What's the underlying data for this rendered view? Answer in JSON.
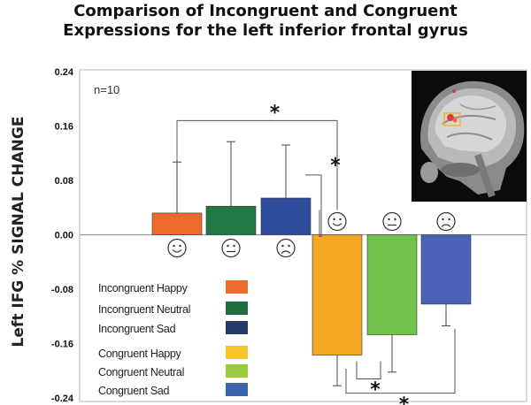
{
  "chart_data": {
    "type": "bar",
    "title_line1": "Comparison of Incongruent and Congruent",
    "title_line2": "Expressions for the left inferior frontal gyrus",
    "ylabel": "Left IFG %  SIGNAL CHANGE",
    "annotation": "n=10",
    "ylim": [
      -0.24,
      0.24
    ],
    "yticks": [
      {
        "value": 0.24,
        "label": "0.24"
      },
      {
        "value": 0.16,
        "label": "0.16"
      },
      {
        "value": 0.08,
        "label": "0.08"
      },
      {
        "value": 0.0,
        "label": "0.00"
      },
      {
        "value": -0.08,
        "label": "-0.08"
      },
      {
        "value": -0.16,
        "label": "-0.16"
      },
      {
        "value": -0.24,
        "label": "-0.24"
      }
    ],
    "bars": [
      {
        "name": "Incongruent Happy",
        "value": 0.032,
        "error": 0.075,
        "color": "#EE6B2E",
        "face": "happy"
      },
      {
        "name": "Incongruent Neutral",
        "value": 0.042,
        "error": 0.095,
        "color": "#1F7A45",
        "face": "neutral"
      },
      {
        "name": "Incongruent Sad",
        "value": 0.054,
        "error": 0.078,
        "color": "#2E4C9C",
        "face": "sad"
      },
      {
        "name": "Congruent Happy",
        "value": -0.177,
        "error": 0.045,
        "color": "#F5A623",
        "face": "happy"
      },
      {
        "name": "Congruent Neutral",
        "value": -0.147,
        "error": 0.055,
        "color": "#6FC34A",
        "face": "neutral"
      },
      {
        "name": "Congruent Sad",
        "value": -0.102,
        "error": 0.032,
        "color": "#4A63B8",
        "face": "sad"
      }
    ],
    "legend": [
      {
        "label": "Incongruent Happy",
        "color": "#EE6B2E"
      },
      {
        "label": "Incongruent Neutral",
        "color": "#236E3E"
      },
      {
        "label": "Incongruent Sad",
        "color": "#263A6A"
      },
      {
        "label": "Congruent Happy",
        "color": "#F7C430"
      },
      {
        "label": "Congruent Neutral",
        "color": "#9ACD3E"
      },
      {
        "label": "Congruent Sad",
        "color": "#3E64AE"
      }
    ],
    "significance": [
      {
        "from": 0,
        "to": 3,
        "label": "*"
      },
      {
        "from": 2,
        "to": 3,
        "label": "*"
      },
      {
        "from": 3,
        "to": 4,
        "label": "*"
      },
      {
        "from": 3,
        "to": 5,
        "label": "*"
      }
    ],
    "inset": "brain-mri-sagittal"
  }
}
